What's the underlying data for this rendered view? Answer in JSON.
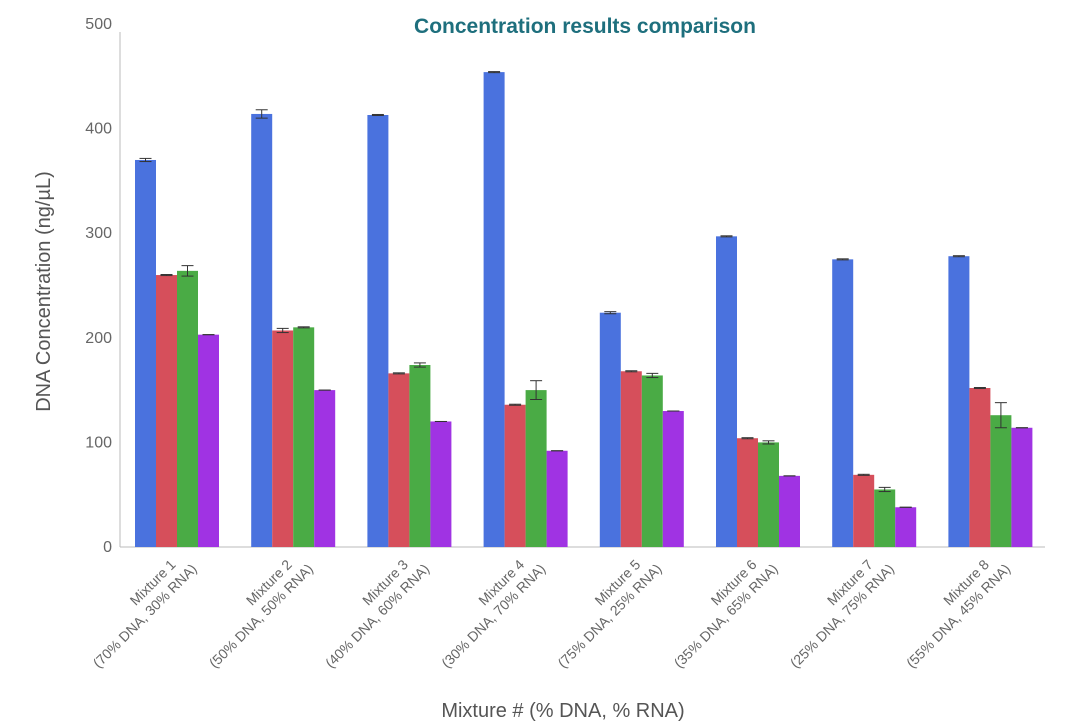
{
  "chart_data": {
    "type": "bar",
    "title": "Concentration results comparison",
    "xlabel": "Mixture # (% DNA, % RNA)",
    "ylabel": "DNA Concentration (ng/µL)",
    "ylim": [
      0,
      500
    ],
    "yticks": [
      "0",
      "100",
      "200",
      "300",
      "400",
      "500"
    ],
    "categories": [
      {
        "line1": "Mixture 1",
        "line2": "(70% DNA, 30% RNA)"
      },
      {
        "line1": "Mixture 2",
        "line2": "(50% DNA, 50% RNA)"
      },
      {
        "line1": "Mixture 3",
        "line2": "(40% DNA, 60% RNA)"
      },
      {
        "line1": "Mixture 4",
        "line2": "(30% DNA, 70% RNA)"
      },
      {
        "line1": "Mixture 5",
        "line2": "(75% DNA, 25% RNA)"
      },
      {
        "line1": "Mixture 6",
        "line2": "(35% DNA, 65% RNA)"
      },
      {
        "line1": "Mixture 7",
        "line2": "(25% DNA, 75% RNA)"
      },
      {
        "line1": "Mixture 8",
        "line2": "(55% DNA, 45% RNA)"
      }
    ],
    "series": [
      {
        "color": "#4a72de",
        "values": [
          370,
          414,
          413,
          454,
          224,
          297,
          275,
          278
        ],
        "errors": [
          1.5,
          4,
          0.5,
          0.5,
          1,
          0.5,
          0.5,
          0.5
        ]
      },
      {
        "color": "#d64f5b",
        "values": [
          260,
          207,
          166,
          136,
          168,
          104,
          69,
          152
        ],
        "errors": [
          0.5,
          2,
          0.5,
          0.5,
          0.5,
          0.5,
          0.5,
          0.5
        ]
      },
      {
        "color": "#4aab45",
        "values": [
          264,
          210,
          174,
          150,
          164,
          100,
          55,
          126
        ],
        "errors": [
          5,
          0.5,
          2,
          9,
          2,
          1.5,
          2,
          12
        ]
      },
      {
        "color": "#a033e3",
        "values": [
          203,
          150,
          120,
          92,
          130,
          68,
          38,
          114
        ],
        "errors": [
          0,
          0,
          0,
          0,
          0,
          0,
          0,
          0
        ]
      }
    ],
    "colors": {
      "title": "#1e6f7d",
      "axis": "#bbbbbb",
      "errorbar": "#333333"
    },
    "grid": false,
    "legend": "none"
  }
}
